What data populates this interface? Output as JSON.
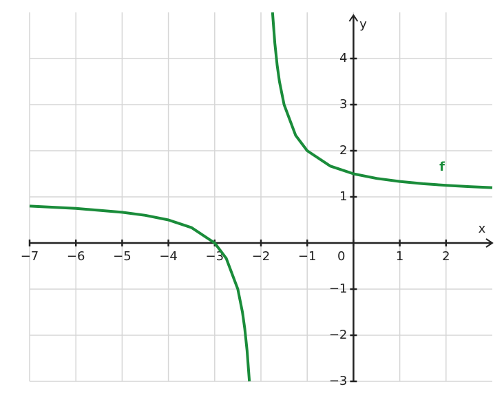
{
  "chart_data": {
    "type": "line",
    "x_label": "x",
    "y_label": "y",
    "xlim": [
      -7,
      3
    ],
    "ylim": [
      -3,
      5
    ],
    "xticks": [
      {
        "value": -7,
        "label": "−7"
      },
      {
        "value": -6,
        "label": "−6"
      },
      {
        "value": -5,
        "label": "−5"
      },
      {
        "value": -4,
        "label": "−4"
      },
      {
        "value": -3,
        "label": "−3"
      },
      {
        "value": -2,
        "label": "−2"
      },
      {
        "value": -1,
        "label": "−1"
      },
      0,
      1,
      2
    ],
    "yticks": [
      {
        "value": -3,
        "label": "−3"
      },
      {
        "value": -2,
        "label": "−2"
      },
      {
        "value": -1,
        "label": "−1"
      },
      1,
      2,
      3,
      4
    ],
    "grid": true,
    "x": [
      -7,
      -6,
      -5,
      -4.5,
      -4,
      -3.5,
      -3,
      -2.75,
      -2.5,
      -2.4,
      -2.35,
      -2.3,
      -2.25,
      -2,
      -1.75,
      -1.7,
      -1.65,
      -1.6,
      -1.5,
      -1.25,
      -1,
      -0.5,
      0,
      0.5,
      1,
      1.5,
      2,
      2.5,
      3
    ],
    "series": [
      {
        "name": "f",
        "color": "#1a8c3a",
        "values": [
          0.8,
          0.75,
          0.6667,
          0.6,
          0.5,
          0.3333,
          0,
          -0.3333,
          -1,
          -1.5,
          -1.8571,
          -2.3333,
          -3,
          null,
          5,
          4.3333,
          3.8571,
          3.5,
          3,
          2.3333,
          2,
          1.6667,
          1.5,
          1.4,
          1.3333,
          1.2857,
          1.25,
          1.2222,
          1.2
        ]
      }
    ]
  }
}
